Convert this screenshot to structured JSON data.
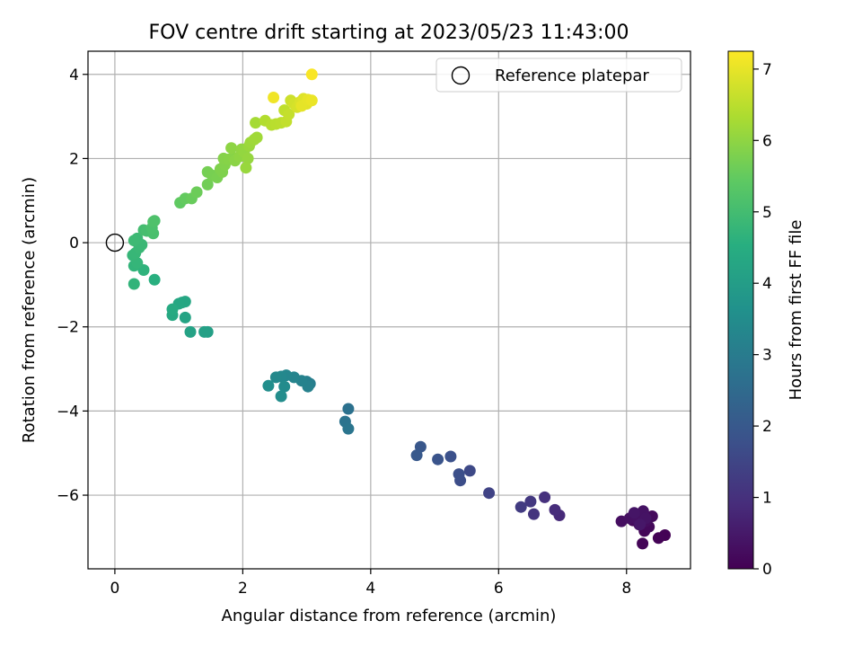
{
  "chart_data": {
    "type": "scatter",
    "title": "FOV centre drift starting at 2023/05/23 11:43:00",
    "xlabel": "Angular distance from reference (arcmin)",
    "ylabel": "Rotation from reference (arcmin)",
    "xlim": [
      -0.42,
      9.0
    ],
    "ylim": [
      -7.75,
      4.55
    ],
    "xticks": [
      0,
      2,
      4,
      6,
      8
    ],
    "yticks": [
      -6,
      -4,
      -2,
      0,
      2,
      4
    ],
    "grid": true,
    "legend": {
      "placement": "top-right",
      "entries": [
        "Reference platepar"
      ]
    },
    "reference_point": {
      "x": 0,
      "y": 0
    },
    "colorbar": {
      "label": "Hours from first FF file",
      "range": [
        0,
        7.25
      ],
      "ticks": [
        0,
        1,
        2,
        3,
        4,
        5,
        6,
        7
      ],
      "colormap": "viridis"
    },
    "points": [
      [
        8.6,
        -6.95,
        0.02
      ],
      [
        8.5,
        -7.02,
        0.05
      ],
      [
        8.25,
        -7.15,
        0.08
      ],
      [
        8.28,
        -6.85,
        0.1
      ],
      [
        8.2,
        -6.7,
        0.12
      ],
      [
        8.35,
        -6.75,
        0.14
      ],
      [
        8.1,
        -6.6,
        0.16
      ],
      [
        8.4,
        -6.5,
        0.18
      ],
      [
        8.22,
        -6.45,
        0.2
      ],
      [
        8.15,
        -6.5,
        0.22
      ],
      [
        8.3,
        -6.62,
        0.24
      ],
      [
        7.92,
        -6.62,
        0.27
      ],
      [
        8.05,
        -6.55,
        0.3
      ],
      [
        8.18,
        -6.6,
        0.32
      ],
      [
        8.26,
        -6.38,
        0.35
      ],
      [
        8.3,
        -6.55,
        0.38
      ],
      [
        8.12,
        -6.42,
        0.42
      ],
      [
        8.21,
        -6.7,
        0.46
      ],
      [
        6.95,
        -6.48,
        0.85
      ],
      [
        6.88,
        -6.35,
        0.9
      ],
      [
        6.72,
        -6.05,
        1.0
      ],
      [
        6.55,
        -6.45,
        1.1
      ],
      [
        6.5,
        -6.15,
        1.18
      ],
      [
        6.35,
        -6.28,
        1.25
      ],
      [
        5.85,
        -5.95,
        1.45
      ],
      [
        5.55,
        -5.42,
        1.6
      ],
      [
        5.4,
        -5.65,
        1.7
      ],
      [
        5.38,
        -5.5,
        1.75
      ],
      [
        5.25,
        -5.08,
        1.8
      ],
      [
        5.05,
        -5.15,
        1.88
      ],
      [
        4.78,
        -4.85,
        1.95
      ],
      [
        4.72,
        -5.05,
        2.0
      ],
      [
        3.65,
        -3.95,
        2.7
      ],
      [
        3.6,
        -4.25,
        2.75
      ],
      [
        3.65,
        -4.42,
        2.8
      ],
      [
        3.05,
        -3.35,
        3.05
      ],
      [
        3.0,
        -3.3,
        3.1
      ],
      [
        3.02,
        -3.42,
        3.15
      ],
      [
        2.92,
        -3.28,
        3.2
      ],
      [
        2.8,
        -3.2,
        3.25
      ],
      [
        2.68,
        -3.15,
        3.3
      ],
      [
        2.6,
        -3.18,
        3.35
      ],
      [
        2.52,
        -3.2,
        3.4
      ],
      [
        2.65,
        -3.42,
        3.45
      ],
      [
        2.6,
        -3.65,
        3.5
      ],
      [
        2.4,
        -3.4,
        3.55
      ],
      [
        1.45,
        -2.12,
        4.05
      ],
      [
        1.4,
        -2.12,
        4.1
      ],
      [
        1.18,
        -2.12,
        4.15
      ],
      [
        1.1,
        -1.78,
        4.2
      ],
      [
        1.05,
        -1.42,
        4.25
      ],
      [
        1.1,
        -1.4,
        4.28
      ],
      [
        1.0,
        -1.45,
        4.3
      ],
      [
        0.9,
        -1.72,
        4.35
      ],
      [
        0.9,
        -1.58,
        4.4
      ],
      [
        0.62,
        -0.88,
        4.55
      ],
      [
        0.45,
        -0.65,
        4.65
      ],
      [
        0.3,
        -0.98,
        4.7
      ],
      [
        0.3,
        -0.55,
        4.72
      ],
      [
        0.35,
        -0.48,
        4.75
      ],
      [
        0.28,
        -0.3,
        4.78
      ],
      [
        0.32,
        -0.25,
        4.8
      ],
      [
        0.38,
        -0.12,
        4.83
      ],
      [
        0.42,
        -0.05,
        4.85
      ],
      [
        0.35,
        0.1,
        4.88
      ],
      [
        0.3,
        0.05,
        4.9
      ],
      [
        0.45,
        0.3,
        5.0
      ],
      [
        0.5,
        0.28,
        5.05
      ],
      [
        0.6,
        0.22,
        5.1
      ],
      [
        0.58,
        0.35,
        5.12
      ],
      [
        0.62,
        0.52,
        5.15
      ],
      [
        0.6,
        0.5,
        5.18
      ],
      [
        1.02,
        0.95,
        5.45
      ],
      [
        1.1,
        1.05,
        5.5
      ],
      [
        1.2,
        1.05,
        5.55
      ],
      [
        1.28,
        1.2,
        5.6
      ],
      [
        1.45,
        1.38,
        5.65
      ],
      [
        1.45,
        1.68,
        5.7
      ],
      [
        1.52,
        1.6,
        5.72
      ],
      [
        1.6,
        1.55,
        5.75
      ],
      [
        1.68,
        1.68,
        5.8
      ],
      [
        1.65,
        1.75,
        5.82
      ],
      [
        1.72,
        1.85,
        5.85
      ],
      [
        1.7,
        2.0,
        5.88
      ],
      [
        1.78,
        1.98,
        5.9
      ],
      [
        1.85,
        2.02,
        5.92
      ],
      [
        1.88,
        1.95,
        5.95
      ],
      [
        1.82,
        2.25,
        5.98
      ],
      [
        1.95,
        2.05,
        6.0
      ],
      [
        1.98,
        2.22,
        6.02
      ],
      [
        2.02,
        2.15,
        6.05
      ],
      [
        2.08,
        2.0,
        6.08
      ],
      [
        2.05,
        1.78,
        6.1
      ],
      [
        2.1,
        2.3,
        6.12
      ],
      [
        2.12,
        2.38,
        6.15
      ],
      [
        2.18,
        2.45,
        6.18
      ],
      [
        2.22,
        2.5,
        6.2
      ],
      [
        2.2,
        2.85,
        6.25
      ],
      [
        2.35,
        2.9,
        6.4
      ],
      [
        2.45,
        2.8,
        6.45
      ],
      [
        2.52,
        2.82,
        6.48
      ],
      [
        2.6,
        2.85,
        6.5
      ],
      [
        2.65,
        3.15,
        6.55
      ],
      [
        2.68,
        2.88,
        6.58
      ],
      [
        2.72,
        3.05,
        6.6
      ],
      [
        2.75,
        3.38,
        6.7
      ],
      [
        2.8,
        3.3,
        6.75
      ],
      [
        2.85,
        3.22,
        6.8
      ],
      [
        2.9,
        3.35,
        6.85
      ],
      [
        2.95,
        3.42,
        6.9
      ],
      [
        3.0,
        3.3,
        6.95
      ],
      [
        2.92,
        3.25,
        6.98
      ],
      [
        3.02,
        3.4,
        7.0
      ],
      [
        3.08,
        3.38,
        7.05
      ],
      [
        2.48,
        3.45,
        7.1
      ],
      [
        3.08,
        4.0,
        7.2
      ]
    ]
  }
}
